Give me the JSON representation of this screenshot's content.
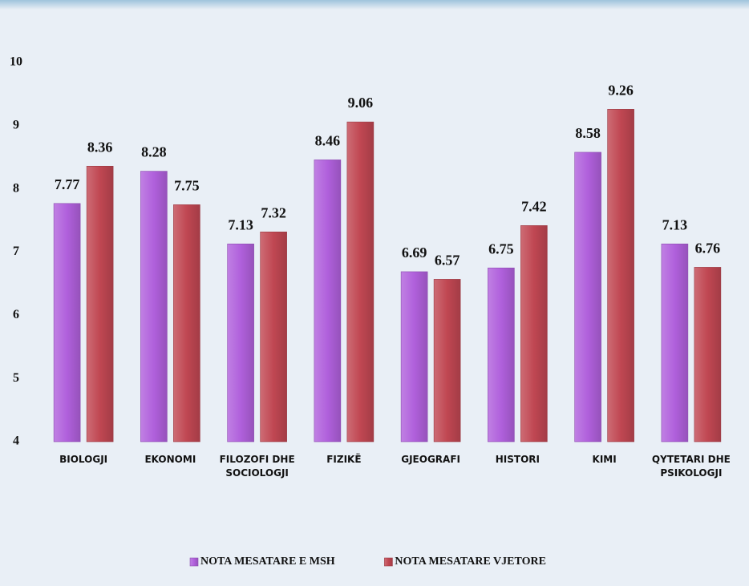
{
  "chart_data": {
    "type": "bar",
    "categories": [
      "BIOLOGJI",
      "EKONOMI",
      "FILOZOFI DHE SOCIOLOGJI",
      "FIZIKË",
      "GJEOGRAFI",
      "HISTORI",
      "KIMI",
      "QYTETARI DHE PSIKOLOGJI"
    ],
    "series": [
      {
        "name": "NOTA MESATARE E MSH",
        "color": "#b060dc",
        "values": [
          7.77,
          8.28,
          7.13,
          8.46,
          6.69,
          6.75,
          8.58,
          7.13
        ]
      },
      {
        "name": "NOTA MESATARE VJETORE",
        "color": "#c04752",
        "values": [
          8.36,
          7.75,
          7.32,
          9.06,
          6.57,
          7.42,
          9.26,
          6.76
        ]
      }
    ],
    "ylim": [
      4,
      10
    ],
    "yticks": [
      4,
      5,
      6,
      7,
      8,
      9,
      10
    ],
    "grid": false,
    "legend": "bottom"
  }
}
